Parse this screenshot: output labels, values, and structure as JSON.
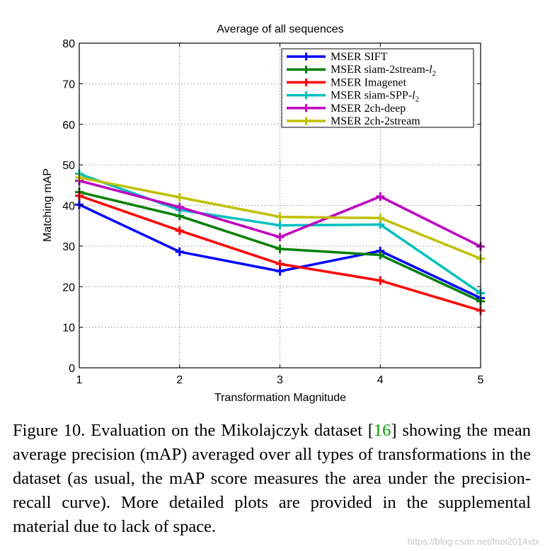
{
  "chart_data": {
    "type": "line",
    "title": "Average of all sequences",
    "xlabel": "Transformation Magnitude",
    "ylabel": "Matching mAP",
    "x": [
      1,
      2,
      3,
      4,
      5
    ],
    "xlim": [
      1,
      5
    ],
    "ylim": [
      0,
      80
    ],
    "xticks": [
      "1",
      "2",
      "3",
      "4",
      "5"
    ],
    "yticks": [
      "0",
      "10",
      "20",
      "30",
      "40",
      "50",
      "60",
      "70",
      "80"
    ],
    "grid": true,
    "legend_position": "top-right",
    "series": [
      {
        "name": "MSER SIFT",
        "color": "#0000ff",
        "values": [
          40.2,
          28.6,
          23.8,
          28.8,
          17.2
        ]
      },
      {
        "name": "MSER siam-2stream-l2",
        "color": "#008000",
        "values": [
          43.3,
          37.4,
          29.3,
          27.8,
          16.4
        ]
      },
      {
        "name": "MSER Imagenet",
        "color": "#ff0000",
        "values": [
          42.4,
          33.8,
          25.6,
          21.5,
          14.1
        ]
      },
      {
        "name": "MSER siam-SPP-l2",
        "color": "#00bfbf",
        "values": [
          47.8,
          38.9,
          35.1,
          35.3,
          18.4
        ]
      },
      {
        "name": "MSER 2ch-deep",
        "color": "#bf00bf",
        "values": [
          46.1,
          39.6,
          32.2,
          42.2,
          29.9
        ]
      },
      {
        "name": "MSER 2ch-2stream",
        "color": "#bfbf00",
        "values": [
          46.9,
          42.0,
          37.2,
          36.9,
          26.9
        ]
      }
    ]
  },
  "caption": {
    "label": "Figure 10. Evaluation on the Mikolajczyk dataset [",
    "ref": "16",
    "text": "] showing the mean average precision (mAP) averaged over all types of transformations in the dataset (as usual, the mAP score measures the area under the precision-recall curve). More detailed plots are provided in the supplemental material due to lack of space."
  },
  "watermark": "https://blog.csdn.net/fnoi2014xtx"
}
